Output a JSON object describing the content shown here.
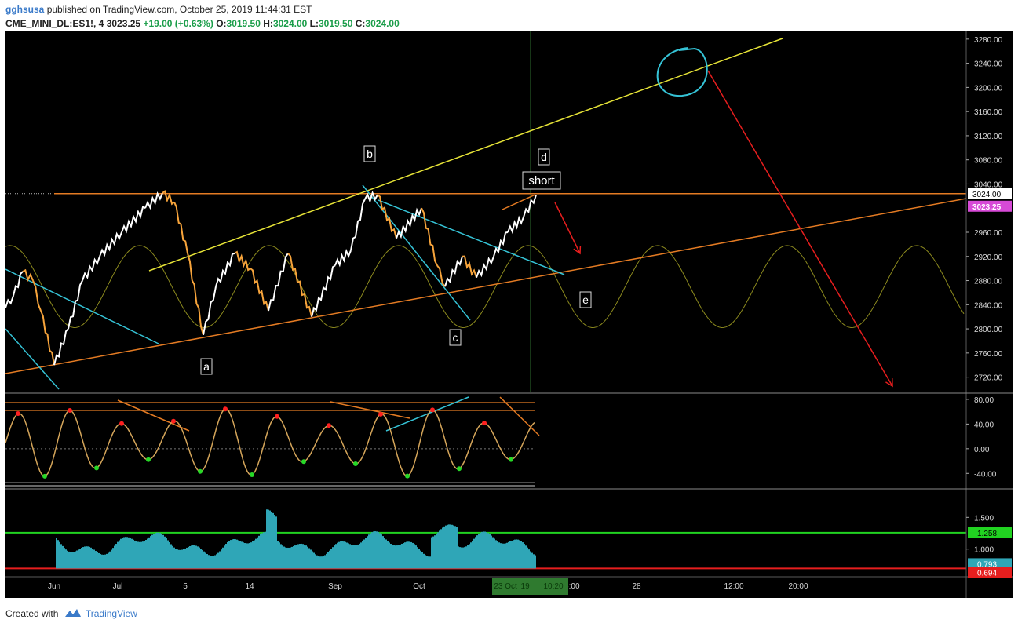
{
  "header": {
    "author": "gghsusa",
    "published_text": "published on TradingView.com, October 25, 2019 11:44:31 EST",
    "symbol": "CME_MINI_DL:ES1!, 4",
    "last_price": "3023.25",
    "change": "+19.00 (+0.63%)",
    "o_label": "O:",
    "o_value": "3019.50",
    "h_label": "H:",
    "h_value": "3024.00",
    "l_label": "L:",
    "l_value": "3019.50",
    "c_label": "C:",
    "c_value": "3024.00"
  },
  "footer": {
    "created_with": "Created with",
    "brand": "TradingView"
  },
  "colors": {
    "background": "#000000",
    "candle_up": "#ffffff",
    "candle_down": "#f7a43b",
    "yellow_line": "#e6e337",
    "orange_line": "#e47b23",
    "cyan_line": "#35c3d6",
    "sine": "#8c8a1e",
    "red_arrow": "#e61e1e",
    "histogram": "#2fa6b7",
    "green_level": "#21d321",
    "red_level": "#e61e1e",
    "price_badge": "#d74ad7"
  },
  "chart_data": [
    {
      "type": "line",
      "name": "price-pane",
      "y_ticks": [
        "3280.00",
        "3240.00",
        "3200.00",
        "3160.00",
        "3120.00",
        "3080.00",
        "3040.00",
        "2960.00",
        "2920.00",
        "2880.00",
        "2840.00",
        "2800.00",
        "2760.00",
        "2720.00"
      ],
      "ylim": [
        2700,
        3285
      ],
      "x_ticks": [
        "Jun",
        "Jul",
        "5",
        "14",
        "Sep",
        "Oct",
        "14",
        "16:00",
        "28",
        "12:00",
        "20:00"
      ],
      "x_highlight": [
        "23 Oct '19",
        "10:20"
      ],
      "price_labels": {
        "line": "3024.00",
        "last": "3023.25"
      },
      "series": [
        {
          "points": [
            [
              0,
              2835
            ],
            [
              10,
              2855
            ],
            [
              22,
              2895
            ],
            [
              35,
              2880
            ],
            [
              45,
              2830
            ],
            [
              62,
              2740
            ],
            [
              80,
              2800
            ],
            [
              98,
              2880
            ],
            [
              120,
              2920
            ],
            [
              148,
              2960
            ],
            [
              178,
              3000
            ],
            [
              200,
              3025
            ],
            [
              215,
              3010
            ],
            [
              232,
              2925
            ],
            [
              252,
              2790
            ],
            [
              268,
              2870
            ],
            [
              292,
              2925
            ],
            [
              312,
              2900
            ],
            [
              335,
              2830
            ],
            [
              360,
              2925
            ],
            [
              390,
              2820
            ],
            [
              420,
              2905
            ],
            [
              440,
              2930
            ],
            [
              458,
              3015
            ],
            [
              474,
              3022
            ],
            [
              498,
              2950
            ],
            [
              530,
              3000
            ],
            [
              550,
              2905
            ],
            [
              560,
              2870
            ],
            [
              582,
              2920
            ],
            [
              600,
              2885
            ],
            [
              622,
              2920
            ],
            [
              640,
              2960
            ],
            [
              660,
              2985
            ],
            [
              676,
              3022
            ]
          ]
        }
      ],
      "annotations": [
        "a",
        "b",
        "c",
        "d",
        "e",
        "short"
      ]
    },
    {
      "type": "line",
      "name": "oscillator-pane",
      "y_ticks": [
        "80.00",
        "40.00",
        "0.00",
        "-40.00"
      ],
      "ylim": [
        -60,
        85
      ]
    },
    {
      "type": "bar",
      "name": "ratio-pane",
      "y_ticks": [
        "1.500",
        "1.000"
      ],
      "ylim": [
        0.6,
        1.9
      ],
      "levels": {
        "upper": "1.258",
        "current": "0.793",
        "lower": "0.694"
      }
    }
  ]
}
